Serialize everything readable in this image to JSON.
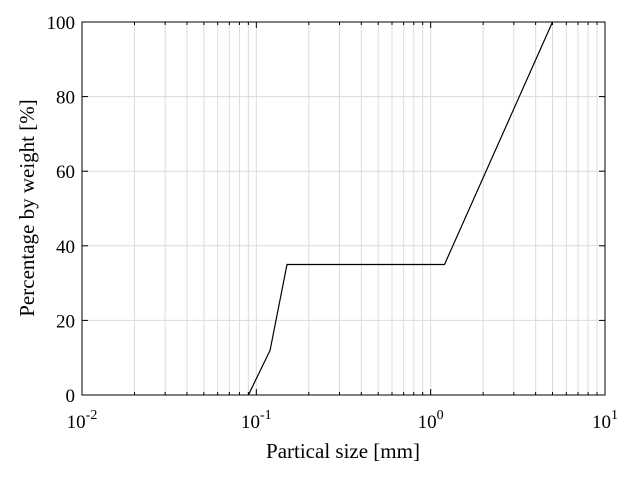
{
  "chart_data": {
    "type": "line",
    "xscale": "log",
    "xlim": [
      0.01,
      10
    ],
    "ylim": [
      0,
      100
    ],
    "grid": true,
    "xlabel": "Partical size  [mm]",
    "ylabel": "Percentage by weight  [%]",
    "x_tick_labels": [
      {
        "base": "10",
        "exp": "-2",
        "value": 0.01
      },
      {
        "base": "10",
        "exp": "-1",
        "value": 0.1
      },
      {
        "base": "10",
        "exp": "0",
        "value": 1
      },
      {
        "base": "10",
        "exp": "1",
        "value": 10
      }
    ],
    "y_ticks": [
      0,
      20,
      40,
      60,
      80,
      100
    ],
    "y_tick_labels": [
      "0",
      "20",
      "40",
      "60",
      "80",
      "100"
    ],
    "series": [
      {
        "color": "#000000",
        "x": [
          0.09,
          0.12,
          0.15,
          1.2,
          5.0
        ],
        "y": [
          0,
          12,
          35,
          35,
          100
        ]
      }
    ]
  }
}
